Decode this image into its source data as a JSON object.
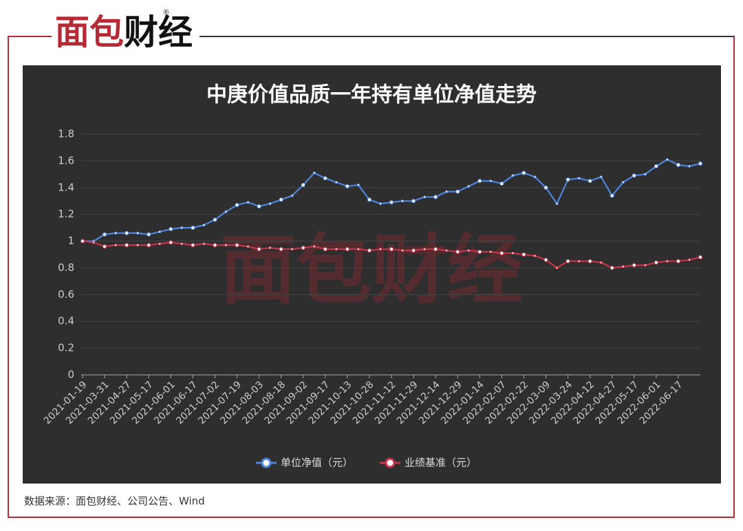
{
  "header": {
    "logo_red": "面包",
    "logo_black": "财经",
    "mark": "®"
  },
  "watermark": "面包财经",
  "chart_data": {
    "type": "line",
    "title": "中庚价值品质一年持有单位净值走势",
    "categories": [
      "2021-01-19",
      null,
      "2021-03-31",
      null,
      "2021-04-27",
      null,
      "2021-05-17",
      null,
      "2021-06-01",
      null,
      "2021-06-17",
      null,
      "2021-07-02",
      null,
      "2021-07-19",
      null,
      "2021-08-03",
      null,
      "2021-08-18",
      null,
      "2021-09-02",
      null,
      "2021-09-17",
      null,
      "2021-10-13",
      null,
      "2021-10-28",
      null,
      "2021-11-12",
      null,
      "2021-11-29",
      null,
      "2021-12-14",
      null,
      "2021-12-29",
      null,
      "2022-01-14",
      null,
      "2022-02-07",
      null,
      "2022-02-22",
      null,
      "2022-03-09",
      null,
      "2022-03-24",
      null,
      "2022-04-12",
      null,
      "2022-04-27",
      null,
      "2022-05-17",
      null,
      "2022-06-01",
      null,
      "2022-06-17",
      null,
      null
    ],
    "series": [
      {
        "name": "单位净值（元）",
        "color": "#4f86e0",
        "values": [
          1.0,
          1.0,
          1.05,
          1.06,
          1.06,
          1.06,
          1.05,
          1.07,
          1.09,
          1.1,
          1.1,
          1.12,
          1.16,
          1.22,
          1.27,
          1.29,
          1.26,
          1.28,
          1.31,
          1.34,
          1.42,
          1.51,
          1.47,
          1.44,
          1.41,
          1.42,
          1.31,
          1.28,
          1.29,
          1.3,
          1.3,
          1.33,
          1.33,
          1.37,
          1.37,
          1.41,
          1.45,
          1.45,
          1.43,
          1.49,
          1.51,
          1.48,
          1.4,
          1.28,
          1.46,
          1.47,
          1.45,
          1.48,
          1.34,
          1.44,
          1.49,
          1.5,
          1.56,
          1.61,
          1.57,
          1.56,
          1.58
        ]
      },
      {
        "name": "业绩基准（元）",
        "color": "#c9344a",
        "values": [
          1.0,
          0.99,
          0.96,
          0.97,
          0.97,
          0.97,
          0.97,
          0.98,
          0.99,
          0.98,
          0.97,
          0.98,
          0.97,
          0.97,
          0.97,
          0.96,
          0.94,
          0.95,
          0.94,
          0.94,
          0.95,
          0.96,
          0.94,
          0.94,
          0.94,
          0.94,
          0.93,
          0.94,
          0.94,
          0.93,
          0.93,
          0.94,
          0.94,
          0.93,
          0.92,
          0.93,
          0.92,
          0.92,
          0.91,
          0.91,
          0.9,
          0.89,
          0.86,
          0.8,
          0.85,
          0.85,
          0.85,
          0.84,
          0.8,
          0.81,
          0.82,
          0.82,
          0.84,
          0.85,
          0.85,
          0.86,
          0.88
        ]
      }
    ],
    "ylim": [
      0,
      1.8
    ],
    "yticks": [
      0,
      0.2,
      0.4,
      0.6,
      0.8,
      1,
      1.2,
      1.4,
      1.6,
      1.8
    ],
    "grid": true,
    "legend": "bottom"
  },
  "footer": {
    "source": "数据来源：面包财经、公司公告、Wind"
  }
}
